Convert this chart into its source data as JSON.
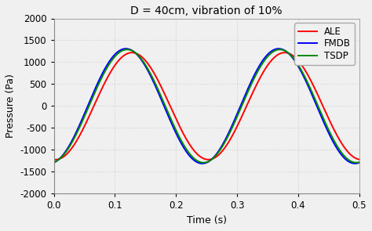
{
  "title": "D = 40cm, vibration of 10%",
  "xlabel": "Time (s)",
  "ylabel": "Pressure (Pa)",
  "xlim": [
    0,
    0.5
  ],
  "ylim": [
    -2000,
    2000
  ],
  "xticks": [
    0,
    0.1,
    0.2,
    0.3,
    0.4,
    0.5
  ],
  "yticks": [
    -2000,
    -1500,
    -1000,
    -500,
    0,
    500,
    1000,
    1500,
    2000
  ],
  "legend": [
    "ALE",
    "FMDB",
    "TSDP"
  ],
  "colors": [
    "#ff0000",
    "#0000ff",
    "#008800"
  ],
  "linewidth": 1.4,
  "n_points": 2000,
  "freq": 4.0,
  "amp_ALE": 1220,
  "amp_FMDB": 1310,
  "amp_TSDP": 1290,
  "t_peak_ALE": 0.128,
  "t_peak_FMDB": 0.118,
  "t_peak_TSDP": 0.12,
  "background_color": "#f0f0f0",
  "plot_bg_color": "#f0f0f0",
  "grid_color": "#d0d0d0",
  "title_fontsize": 10,
  "label_fontsize": 9,
  "tick_fontsize": 8.5,
  "legend_fontsize": 8.5
}
